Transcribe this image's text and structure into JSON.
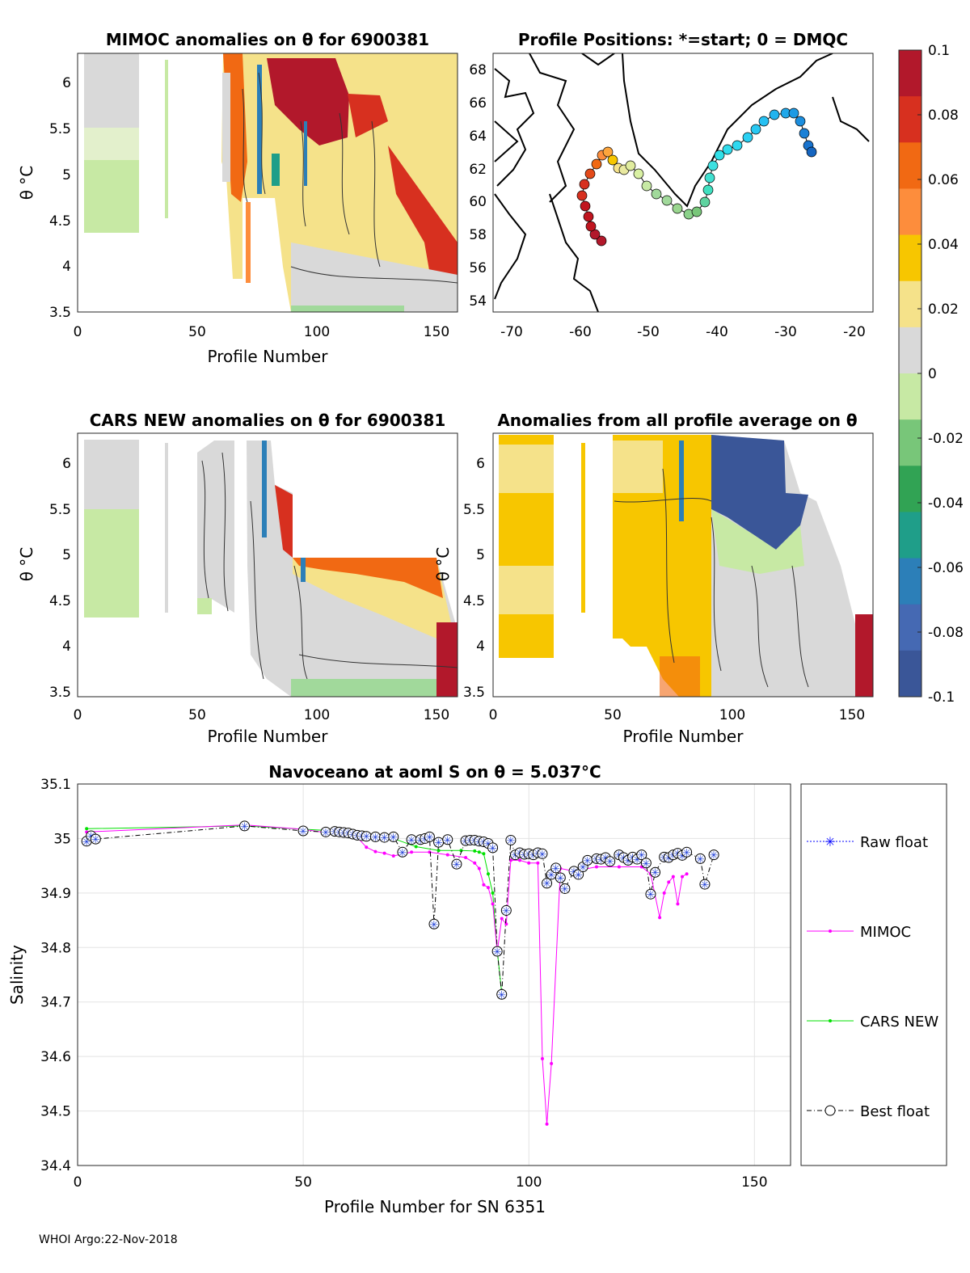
{
  "footer": "WHOI Argo:22-Nov-2018",
  "colorbar": {
    "ticks": [
      "0.1",
      "0.08",
      "0.06",
      "0.04",
      "0.02",
      "0",
      "-0.02",
      "-0.04",
      "-0.06",
      "-0.08",
      "-0.1"
    ],
    "colors": [
      "#b2182b",
      "#d7301f",
      "#f16913",
      "#fd8d3c",
      "#f7c600",
      "#f5e28a",
      "#d9d9d9",
      "#c7e9a4",
      "#78c679",
      "#31a354",
      "#1f9e89",
      "#2c7fb8",
      "#4569b3",
      "#3a5698"
    ]
  },
  "panels": {
    "mimoc": {
      "title": "MIMOC anomalies on θ  for 6900381",
      "xlabel": "Profile Number",
      "ylabel": "θ °C",
      "xticks": [
        "0",
        "50",
        "100",
        "150"
      ],
      "yticks": [
        "6",
        "5.5",
        "5",
        "4.5",
        "4",
        "3.5"
      ]
    },
    "positions": {
      "title": "Profile Positions: *=start; 0 = DMQC",
      "xticks": [
        "-70",
        "-60",
        "-50",
        "-40",
        "-30",
        "-20"
      ],
      "yticks": [
        "68",
        "66",
        "64",
        "62",
        "60",
        "58",
        "56",
        "54"
      ]
    },
    "cars": {
      "title": "CARS NEW anomalies on θ for 6900381",
      "xlabel": "Profile Number",
      "ylabel": "θ °C",
      "xticks": [
        "0",
        "50",
        "100",
        "150"
      ],
      "yticks": [
        "6",
        "5.5",
        "5",
        "4.5",
        "4",
        "3.5"
      ]
    },
    "allavg": {
      "title": "Anomalies from all profile average on θ",
      "xlabel": "Profile Number",
      "ylabel": "θ °C",
      "xticks": [
        "0",
        "50",
        "100",
        "150"
      ],
      "yticks": [
        "6",
        "5.5",
        "5",
        "4.5",
        "4",
        "3.5"
      ]
    }
  },
  "chart_data": [
    {
      "type": "line",
      "title": "Navoceano at aoml S on θ = 5.037°C",
      "xlabel": "Profile Number for SN 6351",
      "ylabel": "Salinity",
      "xlim": [
        0,
        158
      ],
      "ylim": [
        34.4,
        35.1
      ],
      "xticks": [
        "0",
        "50",
        "100",
        "150"
      ],
      "yticks": [
        "35.1",
        "35",
        "34.9",
        "34.8",
        "34.7",
        "34.6",
        "34.5",
        "34.4"
      ],
      "legend": [
        "Raw float",
        "MIMOC",
        "CARS NEW",
        "Best float"
      ],
      "series": [
        {
          "name": "Best float",
          "color": "#000000",
          "x": [
            2,
            3,
            4,
            37,
            50,
            55,
            57,
            58,
            59,
            60,
            61,
            62,
            63,
            64,
            66,
            68,
            70,
            72,
            74,
            76,
            77,
            78,
            79,
            80,
            82,
            84,
            86,
            87,
            88,
            89,
            90,
            91,
            92,
            93,
            94,
            95,
            96,
            97,
            98,
            99,
            100,
            101,
            102,
            103,
            104,
            105,
            106,
            107,
            108,
            110,
            111,
            112,
            113,
            115,
            116,
            117,
            118,
            120,
            121,
            122,
            123,
            124,
            125,
            126,
            127,
            128,
            130,
            131,
            132,
            133,
            134,
            135,
            138,
            139,
            141
          ],
          "y": [
            34.995,
            35.005,
            34.999,
            35.023,
            35.014,
            35.012,
            35.013,
            35.012,
            35.011,
            35.01,
            35.008,
            35.006,
            35.005,
            35.004,
            35.003,
            35.002,
            35.003,
            34.975,
            34.998,
            34.998,
            35.0,
            35.003,
            34.843,
            34.993,
            34.998,
            34.953,
            34.996,
            34.997,
            34.997,
            34.995,
            34.994,
            34.991,
            34.983,
            34.793,
            34.714,
            34.868,
            34.997,
            34.97,
            34.974,
            34.971,
            34.972,
            34.97,
            34.974,
            34.972,
            34.918,
            34.934,
            34.946,
            34.928,
            34.908,
            34.94,
            34.934,
            34.948,
            34.96,
            34.963,
            34.962,
            34.965,
            34.958,
            34.97,
            34.965,
            34.96,
            34.966,
            34.962,
            34.97,
            34.955,
            34.898,
            34.938,
            34.966,
            34.965,
            34.97,
            34.973,
            34.969,
            34.975,
            34.963,
            34.916,
            34.97
          ]
        },
        {
          "name": "MIMOC",
          "color": "#ff00ff",
          "x": [
            2,
            37,
            50,
            62,
            64,
            66,
            68,
            70,
            74,
            78,
            82,
            86,
            88,
            89,
            90,
            91,
            92,
            93,
            94,
            95,
            96,
            98,
            100,
            102,
            103,
            104,
            105,
            107,
            110,
            115,
            120,
            125,
            127,
            129,
            130,
            131,
            132,
            133,
            134,
            135
          ],
          "y": [
            35.012,
            35.025,
            35.017,
            35.002,
            34.984,
            34.976,
            34.973,
            34.968,
            34.975,
            34.975,
            34.97,
            34.965,
            34.955,
            34.945,
            34.915,
            34.91,
            34.88,
            34.792,
            34.853,
            34.843,
            34.96,
            34.96,
            34.955,
            34.955,
            34.596,
            34.476,
            34.587,
            34.945,
            34.94,
            34.948,
            34.948,
            34.948,
            34.935,
            34.855,
            34.9,
            34.92,
            34.93,
            34.88,
            34.93,
            34.935
          ]
        },
        {
          "name": "CARS NEW",
          "color": "#00e000",
          "x": [
            2,
            37,
            50,
            55,
            60,
            65,
            70,
            75,
            80,
            85,
            88,
            89,
            90,
            91,
            92,
            93,
            94
          ],
          "y": [
            35.018,
            35.023,
            35.017,
            35.015,
            35.01,
            35.005,
            35.0,
            34.985,
            34.978,
            34.978,
            34.977,
            34.975,
            34.972,
            34.935,
            34.9,
            34.794,
            34.716
          ]
        }
      ]
    }
  ]
}
